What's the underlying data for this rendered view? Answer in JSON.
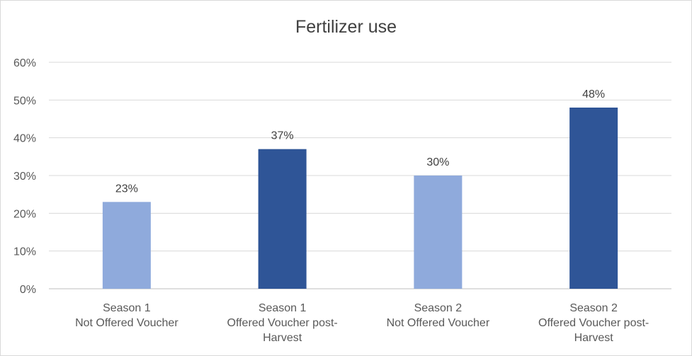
{
  "chart_data": {
    "type": "bar",
    "title": "Fertilizer use",
    "xlabel": "",
    "ylabel": "",
    "ylim": [
      0,
      60
    ],
    "y_unit": "%",
    "yticks": [
      "0%",
      "10%",
      "20%",
      "30%",
      "40%",
      "50%",
      "60%"
    ],
    "grid": true,
    "legend": "none",
    "categories": [
      [
        "Season 1",
        "Not Offered Voucher"
      ],
      [
        "Season 1",
        "Offered Voucher post-",
        "Harvest"
      ],
      [
        "Season 2",
        "Not Offered Voucher"
      ],
      [
        "Season 2",
        "Offered Voucher post-",
        "Harvest"
      ]
    ],
    "values": [
      23,
      37,
      30,
      48
    ],
    "data_labels": [
      "23%",
      "37%",
      "30%",
      "48%"
    ],
    "colors": [
      "#8faadc",
      "#2f5597",
      "#8faadc",
      "#2f5597"
    ],
    "gridline_color": "#d9d9d9",
    "axis_color": "#bfbfbf"
  }
}
